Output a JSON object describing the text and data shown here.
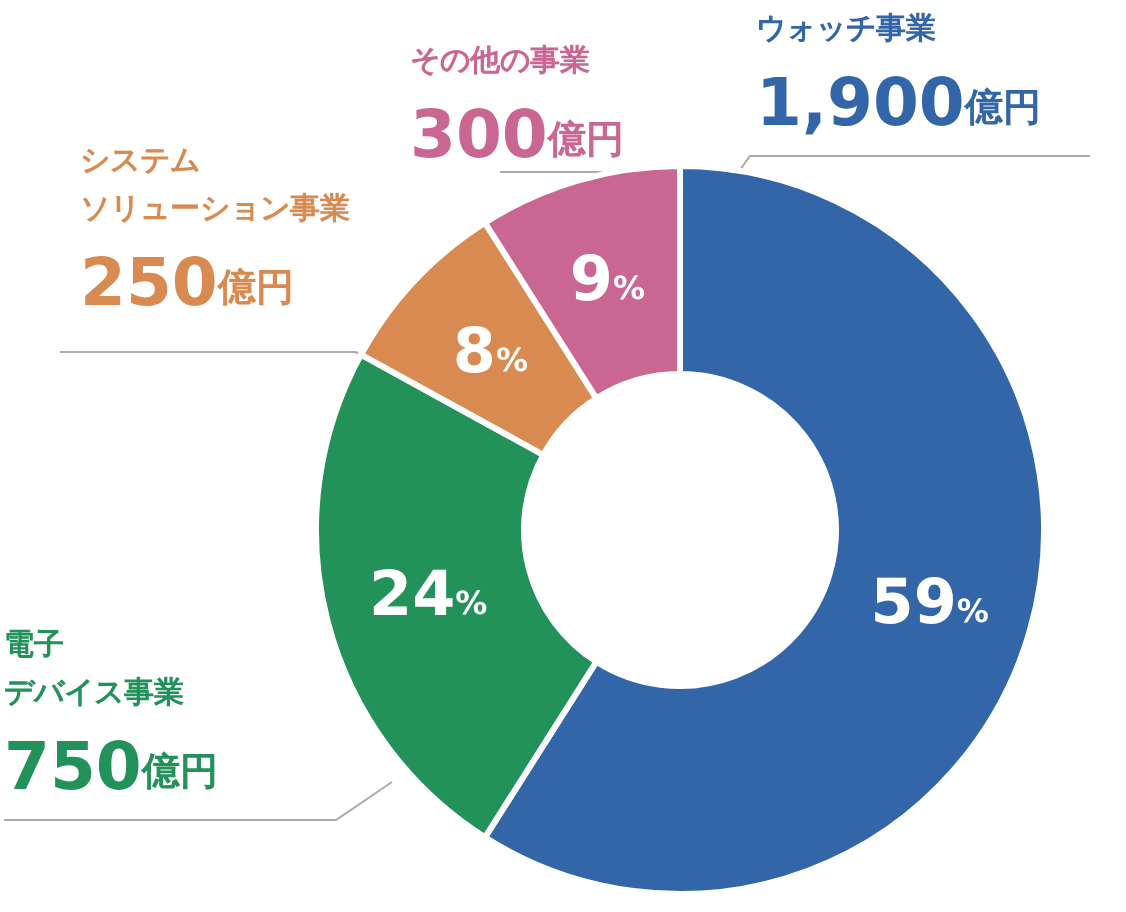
{
  "chart_data": {
    "type": "donut",
    "categories": [
      "ウォッチ事業",
      "電子デバイス事業",
      "システムソリューション事業",
      "その他の事業"
    ],
    "values": [
      59,
      24,
      8,
      9
    ],
    "colors": [
      "#3366a8",
      "#23925a",
      "#d98a50",
      "#c96692"
    ],
    "value_labels": [
      "59%",
      "24%",
      "8%",
      "9%"
    ],
    "annotations": [
      {
        "text": "1,900億円",
        "x": "ウォッチ事業"
      },
      {
        "text": "750億円",
        "x": "電子デバイス事業"
      },
      {
        "text": "250億円",
        "x": "システムソリューション事業"
      },
      {
        "text": "300億円",
        "x": "その他の事業"
      }
    ]
  }
}
